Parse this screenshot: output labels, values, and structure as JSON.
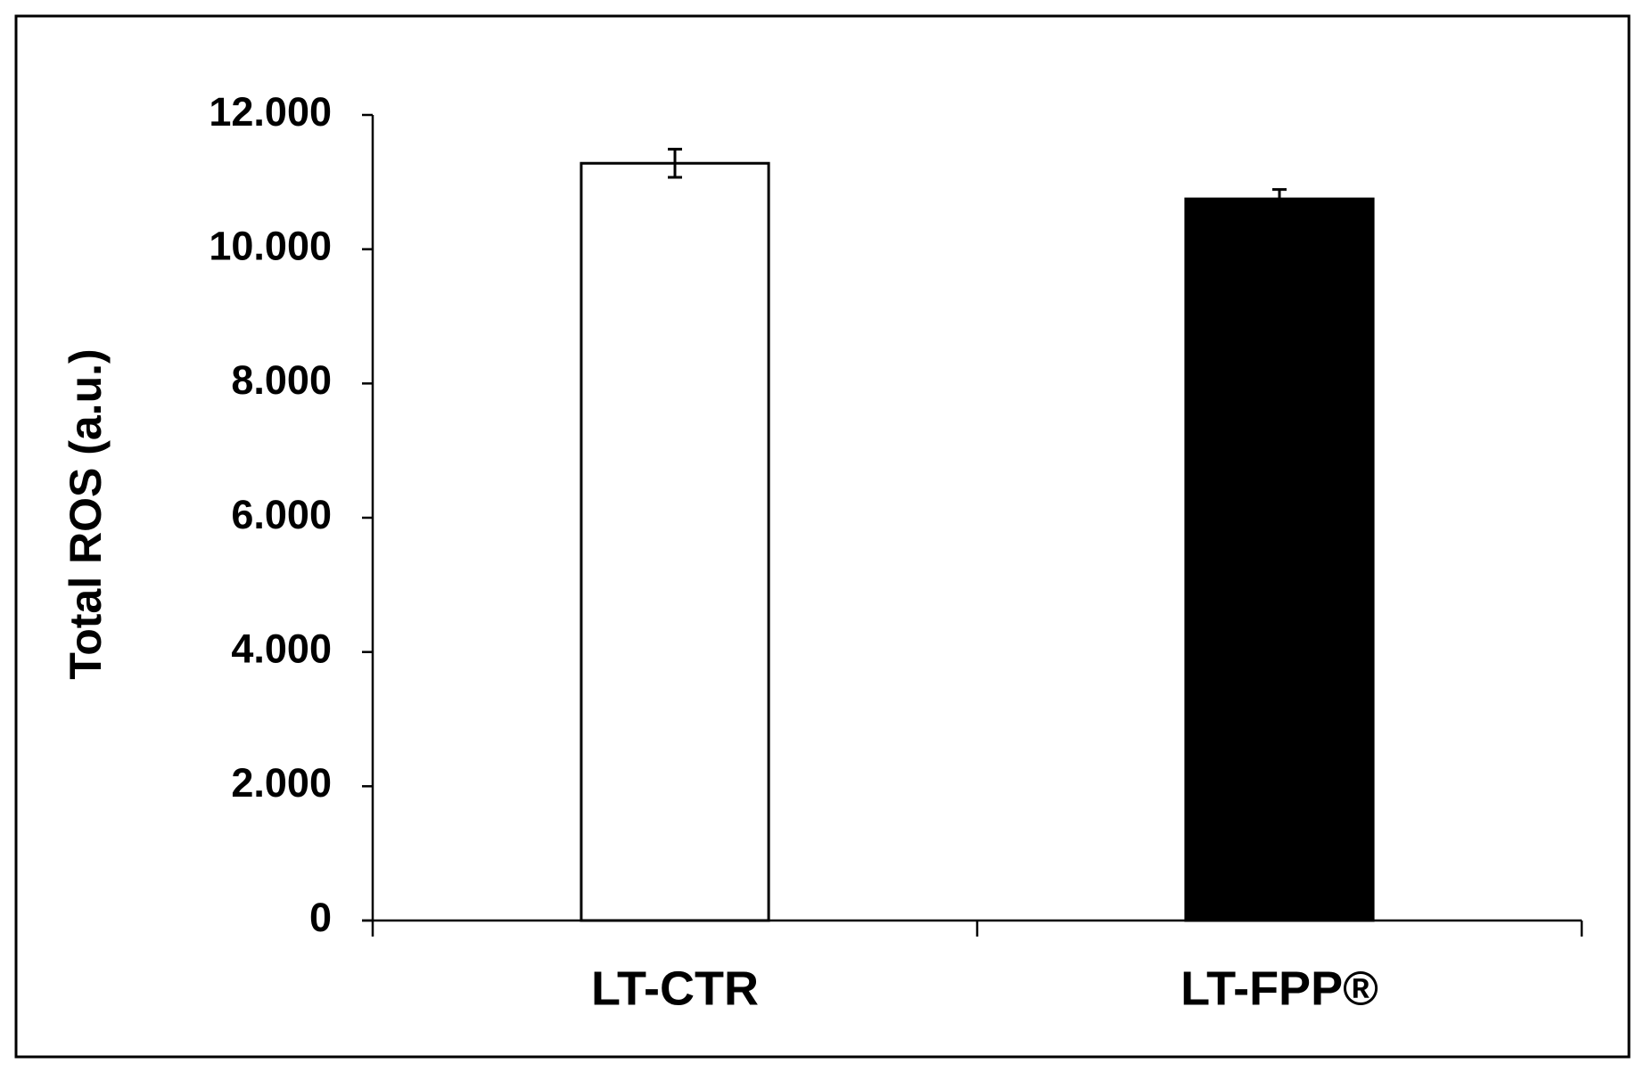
{
  "chart_data": {
    "type": "bar",
    "y_label": "Total ROS (a.u.)",
    "categories": [
      "LT-CTR",
      "LT-FPP®"
    ],
    "values": [
      11280,
      10750
    ],
    "errors": [
      210,
      140
    ],
    "colors": [
      "#ffffff",
      "#000000"
    ],
    "ylim": [
      0,
      12000
    ],
    "yticks": [
      0,
      {
        "value": 2000,
        "label": "2.000"
      },
      {
        "value": 4000,
        "label": "4.000"
      },
      {
        "value": 6000,
        "label": "6.000"
      },
      {
        "value": 8000,
        "label": "8.000"
      },
      {
        "value": 10000,
        "label": "10.000"
      },
      {
        "value": 12000,
        "label": "12.000"
      }
    ],
    "grid": false
  }
}
